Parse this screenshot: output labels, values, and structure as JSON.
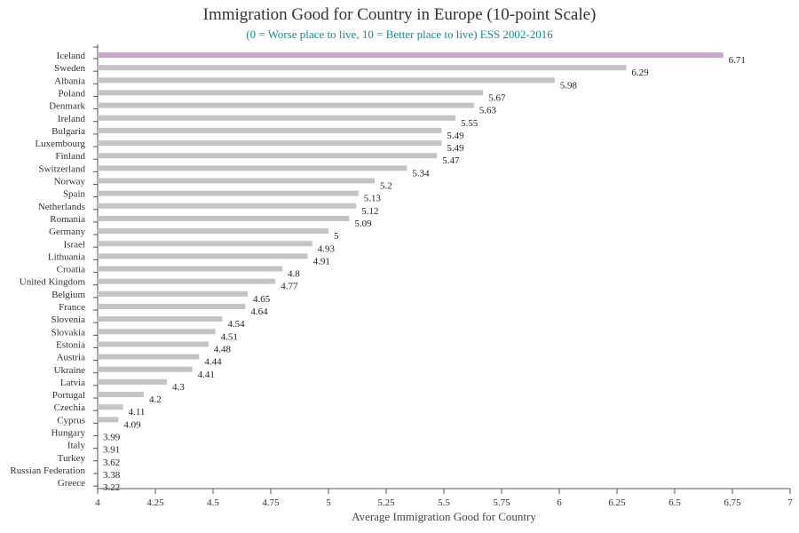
{
  "chart_data": {
    "type": "bar",
    "orientation": "horizontal",
    "title": "Immigration Good for Country in Europe (10-point Scale)",
    "subtitle": "(0 = Worse place to live, 10 = Better place to live) ESS 2002-2016",
    "xlabel": "Average Immigration Good for Country",
    "ylabel": "",
    "xlim": [
      4,
      7
    ],
    "xticks": [
      "4",
      "4.25",
      "4.5",
      "4.75",
      "5",
      "5.25",
      "5.5",
      "5.75",
      "6",
      "6.25",
      "6.5",
      "6.75",
      "7"
    ],
    "categories": [
      "Iceland",
      "Sweden",
      "Albania",
      "Poland",
      "Denmark",
      "Ireland",
      "Bulgaria",
      "Luxembourg",
      "Finland",
      "Switzerland",
      "Norway",
      "Spain",
      "Netherlands",
      "Romania",
      "Germany",
      "Israel",
      "Lithuania",
      "Croatia",
      "United Kingdom",
      "Belgium",
      "France",
      "Slovenia",
      "Slovakia",
      "Estonia",
      "Austria",
      "Ukraine",
      "Latvia",
      "Portugal",
      "Czechia",
      "Cyprus",
      "Hungary",
      "Italy",
      "Turkey",
      "Russian Federation",
      "Greece"
    ],
    "values": [
      6.71,
      6.29,
      5.98,
      5.67,
      5.63,
      5.55,
      5.49,
      5.49,
      5.47,
      5.34,
      5.2,
      5.13,
      5.12,
      5.09,
      5,
      4.93,
      4.91,
      4.8,
      4.77,
      4.65,
      4.64,
      4.54,
      4.51,
      4.48,
      4.44,
      4.41,
      4.3,
      4.2,
      4.11,
      4.09,
      3.99,
      3.91,
      3.62,
      3.38,
      3.22
    ],
    "value_labels": [
      "6.71",
      "6.29",
      "5.98",
      "5.67",
      "5.63",
      "5.55",
      "5.49",
      "5.49",
      "5.47",
      "5.34",
      "5.2",
      "5.13",
      "5.12",
      "5.09",
      "5",
      "4.93",
      "4.91",
      "4.8",
      "4.77",
      "4.65",
      "4.64",
      "4.54",
      "4.51",
      "4.48",
      "4.44",
      "4.41",
      "4.3",
      "4.2",
      "4.11",
      "4.09",
      "3.99",
      "3.91",
      "3.62",
      "3.38",
      "3.22"
    ],
    "highlight_category": "Iceland",
    "colors": {
      "bar": "#c4c4c4",
      "highlight": "#c9a9c9",
      "subtitle": "#1a8a8a",
      "axis": "#555555"
    },
    "grid": false,
    "legend": "none"
  }
}
